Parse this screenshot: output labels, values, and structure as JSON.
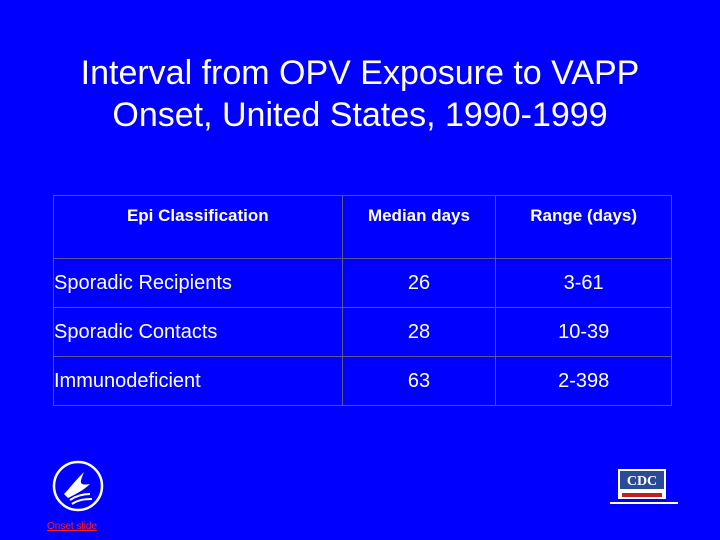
{
  "slide": {
    "title_line1": "Interval from OPV Exposure to VAPP",
    "title_line2": "Onset, United States, 1990-1999"
  },
  "table": {
    "headers": [
      "Epi Classification",
      "Median days",
      "Range (days)"
    ],
    "rows": [
      {
        "classification": "Sporadic Recipients",
        "median": "26",
        "range": "3-61"
      },
      {
        "classification": "Sporadic Contacts",
        "median": "28",
        "range": "10-39"
      },
      {
        "classification": "Immunodeficient",
        "median": "63",
        "range": "2-398"
      }
    ]
  },
  "footer": {
    "link_text": "Onset slide",
    "cdc_logo_text": "CDC"
  },
  "colors": {
    "background": "#0000ff",
    "text": "#ffffff",
    "link": "#ff2020"
  }
}
